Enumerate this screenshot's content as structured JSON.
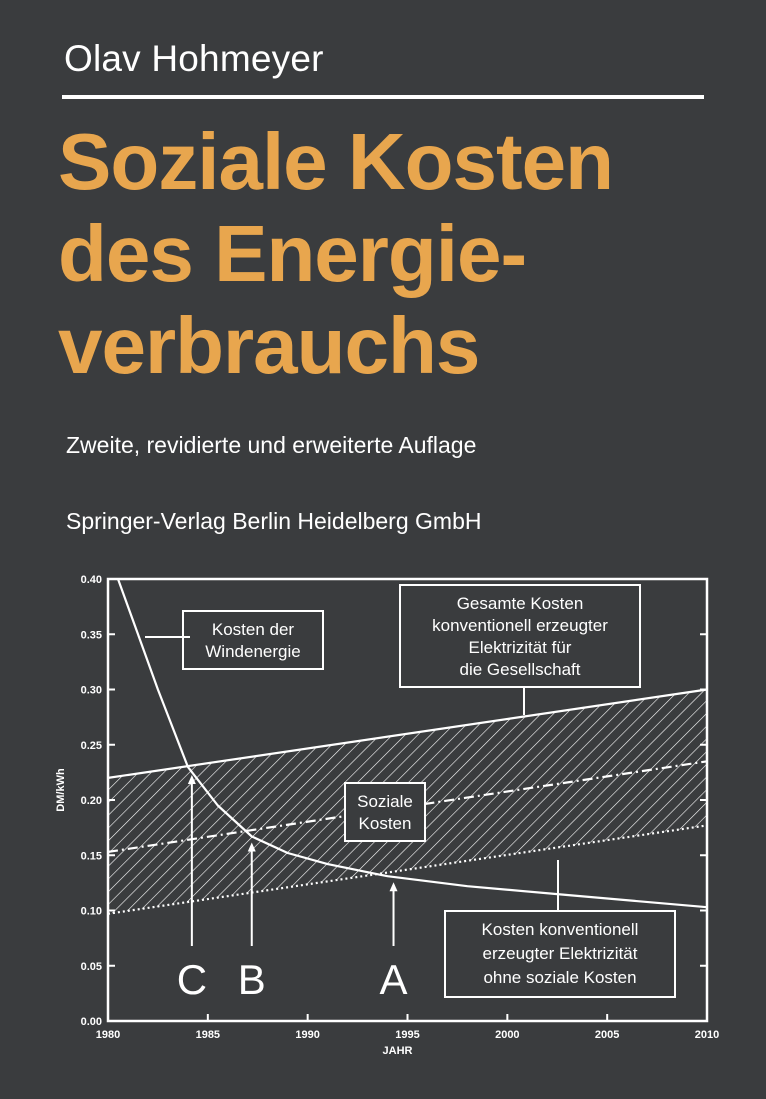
{
  "cover": {
    "author": "Olav Hohmeyer",
    "title_lines": [
      "Soziale Kosten",
      "des Energie-",
      "verbrauchs"
    ],
    "edition": "Zweite, revidierte und erweiterte Auflage",
    "publisher": "Springer-Verlag Berlin Heidelberg GmbH",
    "title_color": "#e8a64e",
    "background_color": "#3a3c3e"
  },
  "chart_data": {
    "type": "line",
    "xlabel": "JAHR",
    "ylabel": "DM/kWh",
    "xlim": [
      1980,
      2010
    ],
    "ylim": [
      0,
      0.4
    ],
    "x_ticks": [
      "1980",
      "1985",
      "1990",
      "1995",
      "2000",
      "2005",
      "2010"
    ],
    "y_ticks": [
      "0.00",
      "0.05",
      "0.10",
      "0.15",
      "0.20",
      "0.25",
      "0.30",
      "0.35",
      "0.40"
    ],
    "series": [
      {
        "style": "solid",
        "x": [
          1980.5,
          1981.5,
          1982.5,
          1984,
          1985.5,
          1987.2,
          1989,
          1991,
          1994,
          1998,
          2003,
          2010
        ],
        "y": [
          0.4,
          0.35,
          0.3,
          0.23,
          0.195,
          0.167,
          0.152,
          0.142,
          0.131,
          0.122,
          0.114,
          0.103
        ]
      },
      {
        "style": "solid",
        "x": [
          1980,
          2010
        ],
        "y": [
          0.22,
          0.3
        ]
      },
      {
        "style": "dash-dot",
        "x": [
          1980,
          2010
        ],
        "y": [
          0.153,
          0.235
        ]
      },
      {
        "style": "dotted",
        "x": [
          1980,
          2010
        ],
        "y": [
          0.097,
          0.177
        ]
      }
    ],
    "shaded_band": {
      "x": [
        1980,
        2010
      ],
      "lower": [
        0.097,
        0.177
      ],
      "upper": [
        0.22,
        0.3
      ]
    },
    "annotations": [
      {
        "lines": [
          "Kosten der",
          "Windenergie"
        ]
      },
      {
        "lines": [
          "Gesamte Kosten",
          "konventionell erzeugter",
          "Elektrizität für",
          "die Gesellschaft"
        ]
      },
      {
        "lines": [
          "Soziale",
          "Kosten"
        ]
      },
      {
        "lines": [
          "Kosten konventionell",
          "erzeugter Elektrizität",
          "ohne soziale Kosten"
        ]
      }
    ],
    "markers": [
      {
        "label": "C",
        "x": 1984.2,
        "y": 0.228
      },
      {
        "label": "B",
        "x": 1987.2,
        "y": 0.167
      },
      {
        "label": "A",
        "x": 1994.3,
        "y": 0.131
      }
    ]
  }
}
